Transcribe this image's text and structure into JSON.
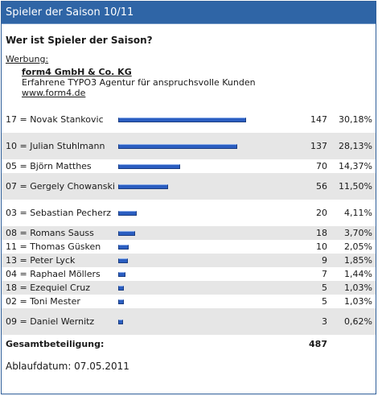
{
  "header": {
    "title": "Spieler der Saison 10/11"
  },
  "question": "Wer ist Spieler der Saison?",
  "ad": {
    "label": "Werbung:",
    "title": "form4 GmbH & Co. KG",
    "description": "Erfahrene TYPO3 Agentur für anspruchsvolle Kunden",
    "link": "www.form4.de"
  },
  "results": [
    {
      "name": "17 = Novak Stankovic",
      "votes": "147",
      "percent": "30,18%",
      "share": 0.3018
    },
    {
      "name": "10 = Julian Stuhlmann",
      "votes": "137",
      "percent": "28,13%",
      "share": 0.2813
    },
    {
      "name": "05 = Björn Matthes",
      "votes": "70",
      "percent": "14,37%",
      "share": 0.1437
    },
    {
      "name": "07 = Gergely Chowanski",
      "votes": "56",
      "percent": "11,50%",
      "share": 0.115
    },
    {
      "name": "03 = Sebastian Pecherz",
      "votes": "20",
      "percent": "4,11%",
      "share": 0.0411
    },
    {
      "name": "08 = Romans Sauss",
      "votes": "18",
      "percent": "3,70%",
      "share": 0.037
    },
    {
      "name": "11 = Thomas Güsken",
      "votes": "10",
      "percent": "2,05%",
      "share": 0.0205
    },
    {
      "name": "13 = Peter Lyck",
      "votes": "9",
      "percent": "1,85%",
      "share": 0.0185
    },
    {
      "name": "04 = Raphael Möllers",
      "votes": "7",
      "percent": "1,44%",
      "share": 0.0144
    },
    {
      "name": "18 = Ezequiel Cruz",
      "votes": "5",
      "percent": "1,03%",
      "share": 0.0103
    },
    {
      "name": "02 = Toni Mester",
      "votes": "5",
      "percent": "1,03%",
      "share": 0.0103
    },
    {
      "name": "09 = Daniel Wernitz",
      "votes": "3",
      "percent": "0,62%",
      "share": 0.0062
    }
  ],
  "total": {
    "label": "Gesamtbeteiligung:",
    "votes": "487"
  },
  "footer": {
    "expiry": "Ablaufdatum: 07.05.2011"
  },
  "colors": {
    "header_bg": "#2f65a6",
    "bar": "#2b5ec1",
    "alt_row": "#e6e6e6"
  }
}
